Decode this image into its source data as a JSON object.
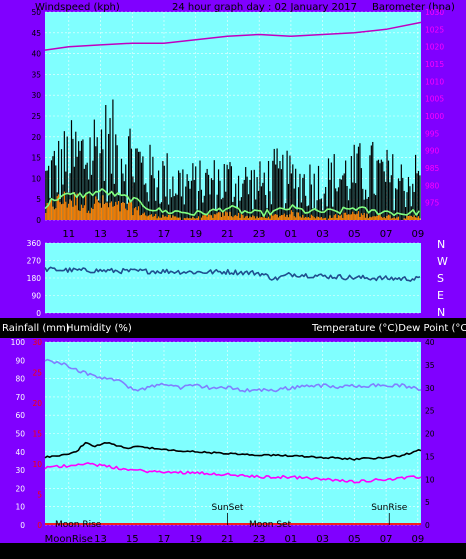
{
  "header": {
    "left_label": "Windspeed (kph)",
    "title": "24 hour graph day : 02 January 2017",
    "right_label": "Barometer (hpa)"
  },
  "colors": {
    "frame": "#8000ff",
    "plot_bg": "#80ffff",
    "barometer": "#c000c0",
    "gust": "#000000",
    "wind_avg": "#80ff80",
    "wind_orange": "#ff8000",
    "direction": "#1f4f8f",
    "temperature": "#8080ff",
    "humidity": "#000000",
    "dewpoint": "#ff00ff",
    "rain": "#ff0000",
    "wind_axis_text": "#000000",
    "baro_axis_text": "#ff00ff",
    "humid_axis_text": "#ffffff",
    "rain_axis_text": "#ff0000",
    "temp_axis_text": "#000000"
  },
  "x_ticks": [
    "11",
    "13",
    "15",
    "17",
    "19",
    "21",
    "23",
    "01",
    "03",
    "05",
    "07",
    "09"
  ],
  "bottom_x_ticks": [
    "MoonRise",
    "13",
    "15",
    "17",
    "19",
    "21",
    "23",
    "01",
    "03",
    "05",
    "07",
    "09"
  ],
  "direction_letters": [
    "N",
    "W",
    "S",
    "E",
    "N"
  ],
  "direction_ticks": [
    "360",
    "270",
    "180",
    "90",
    "0"
  ],
  "mid_labels": {
    "left": "Rainfall (mm)",
    "center": "Humidity (%)",
    "right": "Temperature (°C)Dew Point (°C)"
  },
  "annotations": {
    "sunset": "SunSet",
    "sunrise": "SunRise",
    "moonrise": "Moon Rise",
    "moonset": "Moon Set"
  },
  "chart_data": [
    {
      "type": "line",
      "title": "24 hour graph day : 02 January 2017",
      "ylabel": "Windspeed (kph)",
      "y2label": "Barometer (hpa)",
      "ylim": [
        0,
        50
      ],
      "y2lim": [
        970,
        1030
      ],
      "yticks": [
        0,
        5,
        10,
        15,
        20,
        25,
        30,
        35,
        40,
        45,
        50
      ],
      "y2ticks": [
        975,
        980,
        985,
        990,
        995,
        1000,
        1005,
        1010,
        1015,
        1020,
        1025,
        1030
      ],
      "x_range_hours": [
        9.5,
        33.2
      ],
      "series": [
        {
          "name": "Barometer (hpa)",
          "axis": "y2",
          "x": [
            9.5,
            11,
            13,
            15,
            17,
            19,
            21,
            23,
            25,
            27,
            29,
            31,
            33.2
          ],
          "y": [
            1019,
            1020,
            1020.5,
            1021,
            1021,
            1022,
            1023,
            1023.5,
            1023,
            1023.5,
            1024,
            1025,
            1027
          ]
        },
        {
          "name": "Windspeed gust",
          "x": [
            9.5,
            10,
            11,
            12,
            13,
            14,
            15,
            16,
            17,
            18,
            19,
            20,
            21,
            22,
            23,
            24,
            25,
            26,
            27,
            28,
            29,
            30,
            31,
            32,
            33.2
          ],
          "y": [
            15,
            18,
            22,
            24,
            28,
            26,
            24,
            17,
            16,
            14,
            13,
            14,
            15,
            14,
            13,
            16,
            15,
            14,
            14,
            16,
            17,
            18,
            16,
            14,
            16
          ]
        },
        {
          "name": "Windspeed average",
          "x": [
            9.5,
            10,
            11,
            12,
            13,
            14,
            15,
            16,
            17,
            18,
            19,
            20,
            21,
            22,
            23,
            24,
            25,
            26,
            27,
            28,
            29,
            30,
            31,
            32,
            33.2
          ],
          "y": [
            3,
            5,
            6,
            6,
            7,
            6,
            5,
            3,
            2,
            2,
            1.5,
            2,
            3,
            2,
            1.5,
            2,
            3,
            2,
            2,
            2,
            3,
            2,
            2,
            1.5,
            2
          ]
        },
        {
          "name": "Windspeed lull",
          "x": [
            9.5,
            10,
            11,
            12,
            13,
            14,
            15,
            16,
            17,
            18,
            19,
            20,
            21,
            22,
            23,
            24,
            25,
            26,
            27,
            28,
            29,
            30,
            31,
            32,
            33.2
          ],
          "y": [
            2,
            4,
            5,
            4,
            4,
            3,
            3,
            1,
            1,
            0.5,
            0.5,
            1,
            1.5,
            1,
            0.5,
            1,
            1.5,
            1,
            0.5,
            1,
            1.5,
            1,
            1,
            0.5,
            1
          ]
        }
      ]
    },
    {
      "type": "line",
      "ylabel": "Wind direction",
      "ylim": [
        0,
        360
      ],
      "yticks": [
        0,
        90,
        180,
        270,
        360
      ],
      "series": [
        {
          "name": "Wind direction",
          "x": [
            9.5,
            11,
            13,
            15,
            17,
            19,
            21,
            23,
            24,
            25,
            27,
            29,
            31,
            33.2
          ],
          "y": [
            225,
            220,
            218,
            215,
            215,
            210,
            212,
            205,
            175,
            200,
            190,
            182,
            178,
            175
          ]
        }
      ]
    },
    {
      "type": "line",
      "ylabel": "Humidity (%)",
      "y2label": "Temperature (°C)Dew Point (°C)",
      "ylim": [
        0,
        100
      ],
      "y2lim": [
        0,
        40
      ],
      "yticks": [
        0,
        10,
        20,
        30,
        40,
        50,
        60,
        70,
        80,
        90,
        100
      ],
      "y2ticks": [
        0,
        5,
        10,
        15,
        20,
        25,
        30,
        35,
        40
      ],
      "rain_ticks": [
        0,
        5,
        10,
        15,
        20,
        25,
        30
      ],
      "series": [
        {
          "name": "Temperature (°C)",
          "axis": "y2",
          "x": [
            9.5,
            10.5,
            11.5,
            12.5,
            13.5,
            14.5,
            15,
            16,
            17,
            18,
            19,
            20,
            21,
            22,
            23,
            24,
            25,
            26,
            27,
            28,
            29,
            30,
            31,
            32,
            33.2
          ],
          "y": [
            36,
            35.5,
            34,
            32.5,
            32,
            31,
            29.5,
            30,
            31,
            30,
            30.5,
            30,
            30,
            29.5,
            29.5,
            29.5,
            30,
            30.5,
            30.5,
            30,
            30.5,
            30.5,
            30.5,
            30.5,
            29.5
          ]
        },
        {
          "name": "Humidity (%)",
          "x": [
            9.5,
            10.5,
            11.5,
            12,
            12.5,
            13.5,
            14.5,
            15.5,
            17,
            19,
            21,
            23,
            25,
            27,
            29,
            31,
            32,
            33.2
          ],
          "y": [
            37,
            38,
            40,
            45,
            43,
            45,
            42,
            43,
            41,
            40,
            39,
            38,
            38,
            37,
            36,
            37,
            38,
            41
          ]
        },
        {
          "name": "Dew Point (°C)",
          "axis": "y2",
          "x": [
            9.5,
            11,
            12,
            13,
            14,
            15,
            17,
            19,
            21,
            23,
            25,
            27,
            29,
            31,
            33.2
          ],
          "y": [
            12.5,
            13,
            13.5,
            13,
            12.5,
            12,
            11.5,
            11.5,
            11,
            10.5,
            10.5,
            10,
            9.5,
            10,
            10.5
          ]
        },
        {
          "name": "Rainfall (mm)",
          "x": [
            9.5,
            33.2
          ],
          "y": [
            0,
            0
          ]
        }
      ]
    }
  ]
}
